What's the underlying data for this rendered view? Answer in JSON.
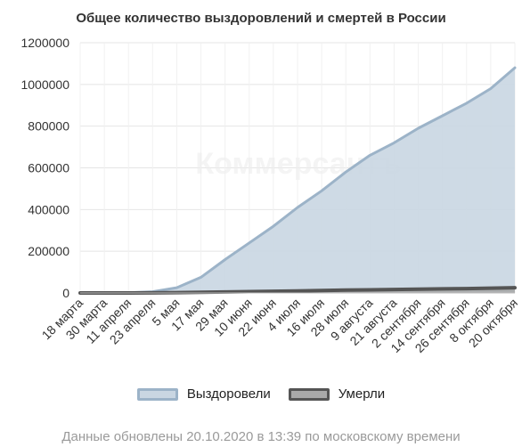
{
  "title": "Общее количество выздоровлений и смертей в России",
  "footer": "Данные обновлены 20.10.2020 в 13:39 по московскому времени",
  "watermark": "Коммерсантъ",
  "colors": {
    "recovered_fill": "#c9d6e2",
    "recovered_line": "#9cb3c8",
    "deaths_fill": "#a9a9a9",
    "deaths_line": "#555555",
    "grid": "#e4e4e4",
    "axis": "#333333"
  },
  "legend": [
    {
      "name": "Выздоровели",
      "series": "recovered"
    },
    {
      "name": "Умерли",
      "series": "deaths"
    }
  ],
  "chart_data": {
    "type": "area",
    "title": "Общее количество выздоровлений и смертей в России",
    "ylim": [
      0,
      1200000
    ],
    "yticks": [
      "0",
      "200000",
      "400000",
      "600000",
      "800000",
      "1000000",
      "1200000"
    ],
    "grid": true,
    "legend_position": "bottom",
    "x_labels": [
      "18 марта",
      "30 марта",
      "11 апреля",
      "23 апреля",
      "5 мая",
      "17 мая",
      "29 мая",
      "10 июня",
      "22 июня",
      "4 июля",
      "16 июля",
      "28 июля",
      "9 августа",
      "21 августа",
      "2 сентября",
      "14 сентября",
      "26 сентября",
      "8 октября",
      "20 октября"
    ],
    "series": [
      {
        "name": "Выздоровели",
        "key": "recovered",
        "x": [
          "18 марта",
          "30 марта",
          "11 апреля",
          "23 апреля",
          "5 мая",
          "17 мая",
          "29 мая",
          "10 июня",
          "22 июня",
          "4 июля",
          "16 июля",
          "28 июля",
          "9 августа",
          "21 августа",
          "2 сентября",
          "14 сентября",
          "26 сентября",
          "8 октября",
          "20 октября"
        ],
        "values": [
          0,
          200,
          1000,
          6000,
          25000,
          75000,
          160000,
          240000,
          320000,
          410000,
          490000,
          580000,
          660000,
          720000,
          790000,
          850000,
          910000,
          980000,
          1080000
        ]
      },
      {
        "name": "Умерли",
        "key": "deaths",
        "x": [
          "18 марта",
          "30 марта",
          "11 апреля",
          "23 апреля",
          "5 мая",
          "17 мая",
          "29 мая",
          "10 июня",
          "22 июня",
          "4 июля",
          "16 июля",
          "28 июля",
          "9 августа",
          "21 августа",
          "2 сентября",
          "14 сентября",
          "26 сентября",
          "8 октября",
          "20 октября"
        ],
        "values": [
          0,
          10,
          100,
          600,
          1900,
          3000,
          4800,
          6500,
          8000,
          10000,
          12000,
          13500,
          15000,
          16500,
          18000,
          19500,
          21000,
          23000,
          25000
        ]
      }
    ]
  }
}
